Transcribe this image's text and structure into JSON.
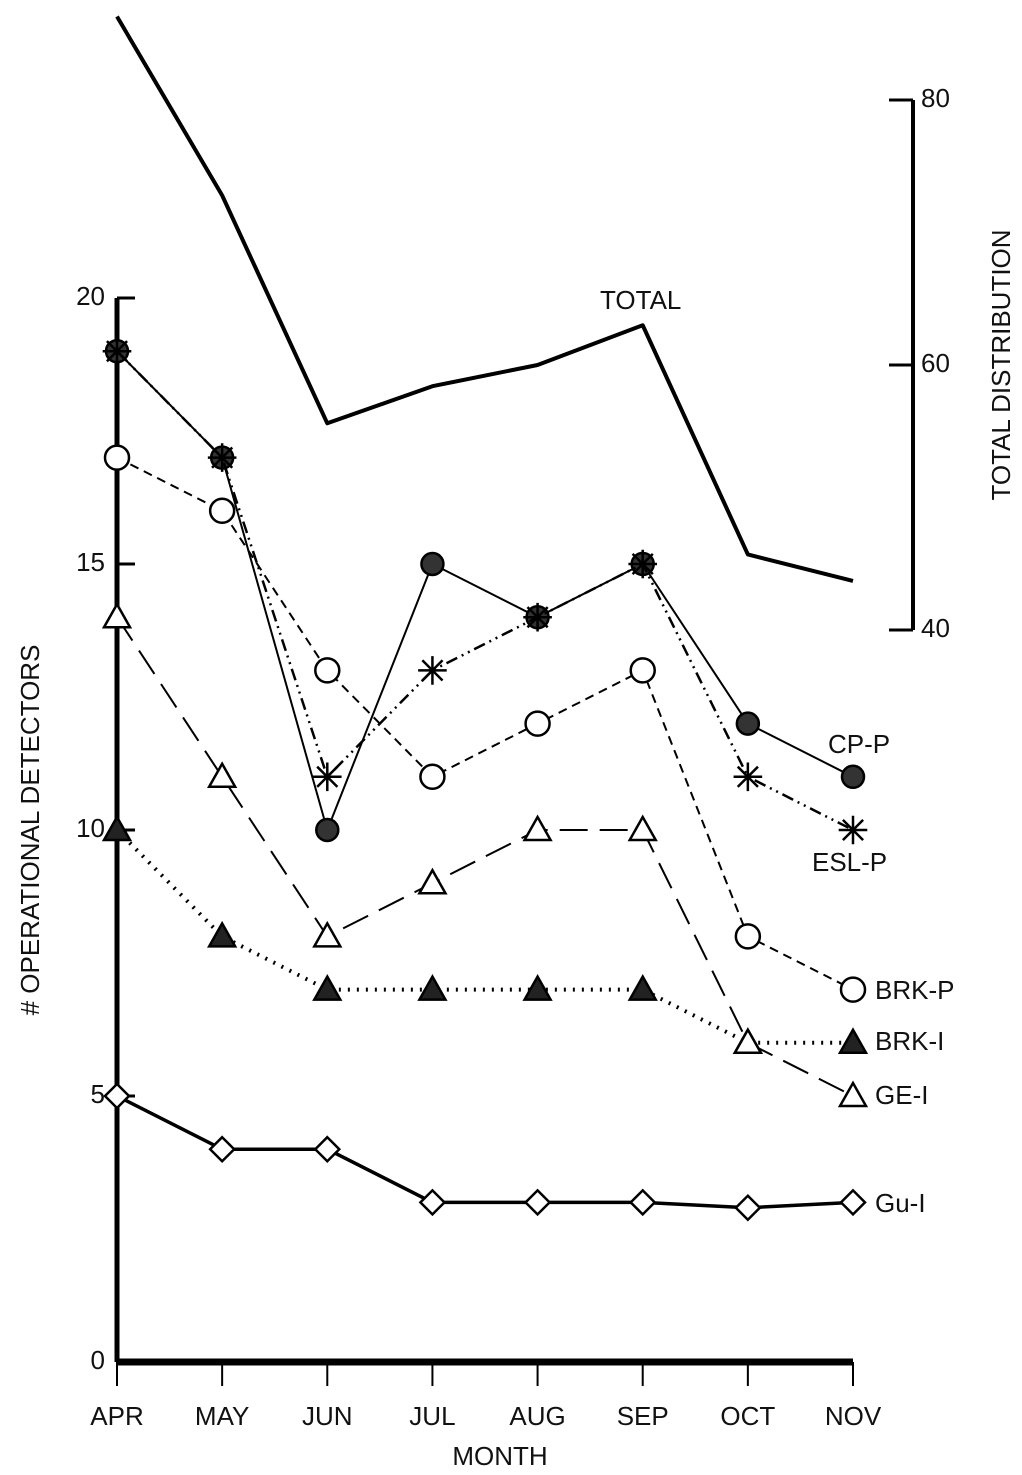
{
  "chart_data": {
    "type": "line",
    "xlabel": "MONTH",
    "ylabel": "# OPERATIONAL DETECTORS",
    "y2label": "TOTAL DISTRIBUTION",
    "categories": [
      "APR",
      "MAY",
      "JUN",
      "JUL",
      "AUG",
      "SEP",
      "OCT",
      "NOV"
    ],
    "ylim": [
      0,
      20
    ],
    "yticks": [
      0,
      5,
      10,
      15,
      20
    ],
    "y2lim": [
      40,
      80
    ],
    "y2ticks": [
      40,
      60,
      80
    ],
    "series": [
      {
        "name": "TOTAL",
        "axis": "y2",
        "color": "#000000",
        "marker": "none",
        "dash": "solid-thick",
        "values": [
          86.3,
          72.8,
          55.6,
          58.4,
          60,
          63,
          45.7,
          43.7
        ]
      },
      {
        "name": "CP-P",
        "color": "#000000",
        "marker": "filled-circle",
        "dash": "solid",
        "values": [
          19,
          17,
          10,
          15,
          14,
          15,
          12,
          11
        ]
      },
      {
        "name": "ESL-P",
        "color": "#000000",
        "marker": "asterisk",
        "dash": "dash-dot-dot",
        "values": [
          19,
          17,
          11,
          13,
          14,
          15,
          11,
          10
        ]
      },
      {
        "name": "BRK-P",
        "color": "#000000",
        "marker": "open-circle",
        "dash": "dashed",
        "values": [
          17,
          16,
          13,
          11,
          12,
          13,
          8,
          7
        ]
      },
      {
        "name": "BRK-I",
        "color": "#000000",
        "marker": "filled-triangle",
        "dash": "dotted",
        "values": [
          10,
          8,
          7,
          7,
          7,
          7,
          6,
          6
        ]
      },
      {
        "name": "GE-I",
        "color": "#000000",
        "marker": "open-triangle",
        "dash": "long-dash",
        "values": [
          14,
          11,
          8,
          9,
          10,
          10,
          6,
          5
        ]
      },
      {
        "name": "Gu-I",
        "color": "#000000",
        "marker": "open-diamond",
        "dash": "solid-medium",
        "values": [
          5,
          4,
          4,
          3,
          3,
          3,
          2.9,
          3
        ]
      }
    ]
  }
}
